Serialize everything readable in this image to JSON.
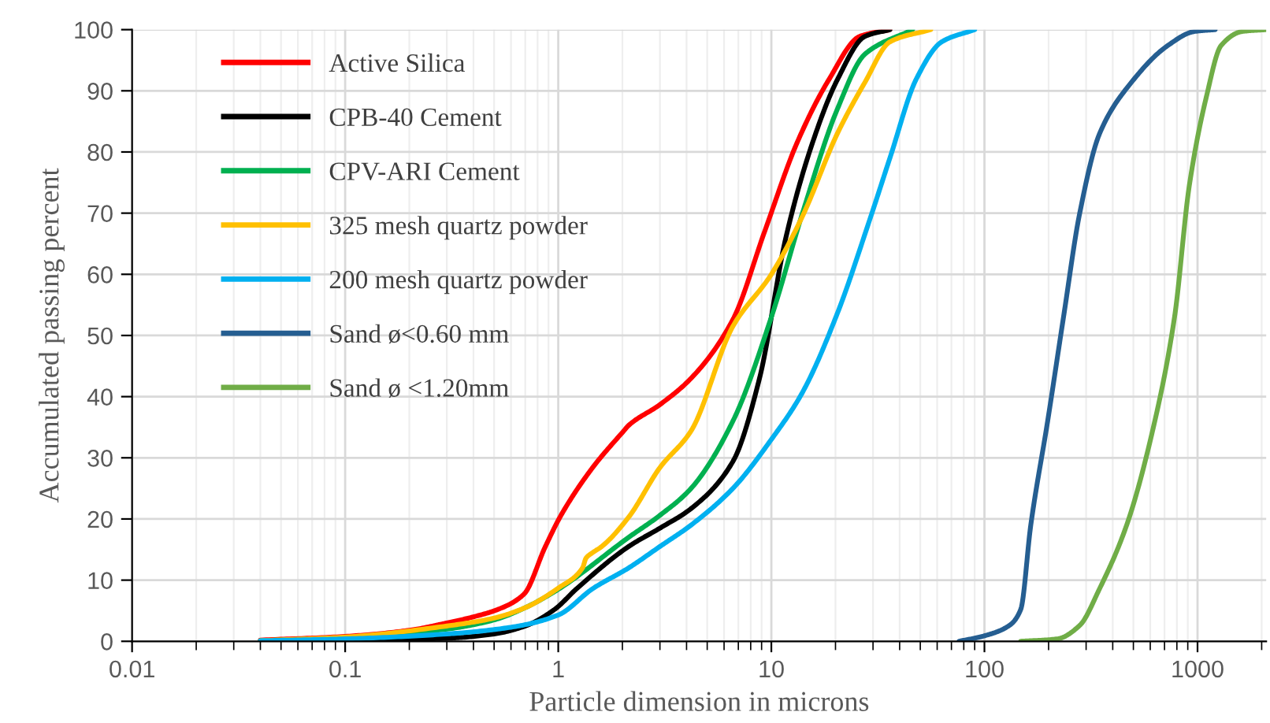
{
  "chart_data": {
    "type": "line",
    "xlabel": "Particle dimension in microns",
    "ylabel": "Accumulated passing percent",
    "log": "x",
    "xlim": [
      0.01,
      2100
    ],
    "xticks": [
      0.01,
      0.1,
      1,
      10,
      100,
      1000
    ],
    "ylim": [
      0,
      100
    ],
    "yticks": [
      0,
      10,
      20,
      30,
      40,
      50,
      60,
      70,
      80,
      90,
      100
    ],
    "grid": true,
    "legend": "top left",
    "marker": "none",
    "line_style": "solid",
    "series": [
      {
        "name": "Active Silica",
        "color": "#ff0000",
        "x": [
          0.04,
          0.1,
          0.2,
          0.3,
          0.4,
          0.52,
          0.69,
          0.87,
          1.03,
          1.45,
          2.03,
          2.14,
          3.0,
          4.2,
          6.6,
          9.3,
          13.2,
          18.6,
          26,
          36
        ],
        "values": [
          0.2,
          0.8,
          1.8,
          3,
          4,
          5.2,
          7.7,
          15.5,
          20.6,
          28.4,
          34.4,
          35.3,
          38.7,
          43,
          52.6,
          67,
          81.5,
          91.8,
          98.9,
          100
        ]
      },
      {
        "name": "CPB-40 Cement",
        "color": "#000000",
        "x": [
          0.04,
          0.1,
          0.3,
          0.5,
          0.7,
          0.96,
          1.22,
          2.14,
          3.0,
          4.2,
          6.6,
          8.8,
          11.7,
          15.6,
          20.4,
          27.5,
          36
        ],
        "values": [
          0,
          0.2,
          0.5,
          1.2,
          2.5,
          5.2,
          8.6,
          15.5,
          18.5,
          21.7,
          29.4,
          43,
          66,
          81.5,
          91.8,
          98.9,
          100
        ]
      },
      {
        "name": "CPV-ARI Cement",
        "color": "#00b050",
        "x": [
          0.04,
          0.1,
          0.3,
          0.5,
          0.7,
          1.0,
          2.14,
          3.0,
          4.2,
          6.6,
          10,
          14,
          20.4,
          27.5,
          46
        ],
        "values": [
          0.1,
          0.6,
          2,
          3.5,
          5.5,
          8.5,
          17,
          20.6,
          25,
          36,
          53,
          70,
          87,
          96,
          100
        ]
      },
      {
        "name": "325 mesh quartz powder",
        "color": "#ffc000",
        "x": [
          0.04,
          0.1,
          0.3,
          0.5,
          0.7,
          1.0,
          1.3,
          1.35,
          1.45,
          1.6,
          2.14,
          3.0,
          4.2,
          6.6,
          10,
          14,
          20.4,
          27.5,
          36,
          56
        ],
        "values": [
          0.1,
          0.7,
          2.5,
          3.8,
          5.5,
          8.7,
          12,
          13.6,
          14.5,
          15.5,
          20.3,
          28.4,
          34.4,
          51.5,
          60,
          69.5,
          83,
          91.4,
          98,
          100
        ]
      },
      {
        "name": "200 mesh quartz powder",
        "color": "#00b0f0",
        "x": [
          0.04,
          0.1,
          0.3,
          0.6,
          1.0,
          1.45,
          2.14,
          3.0,
          4.2,
          6.6,
          10,
          14,
          20.4,
          29,
          36,
          48,
          63,
          90
        ],
        "values": [
          0.1,
          0.4,
          1.2,
          2.3,
          4.3,
          8.6,
          12,
          15.5,
          19,
          25,
          33,
          40.7,
          53.6,
          69,
          79,
          92,
          98,
          100
        ]
      },
      {
        "name": "Sand ø<0.60 mm",
        "color": "#255e91",
        "x": [
          76,
          100,
          131,
          148,
          165,
          198,
          235,
          280,
          347,
          490,
          725,
          966,
          1210
        ],
        "values": [
          0,
          0.9,
          2.6,
          5.2,
          19,
          36,
          53,
          70,
          83,
          91.4,
          97.4,
          99.7,
          100
        ]
      },
      {
        "name": "Sand ø <1.20mm",
        "color": "#70ad47",
        "x": [
          148,
          220,
          280,
          347,
          465,
          615,
          780,
          915,
          1100,
          1290,
          1620,
          2100
        ],
        "values": [
          0,
          0.4,
          2.6,
          8.6,
          19,
          34.4,
          53,
          74.5,
          89,
          97.4,
          99.7,
          100
        ]
      }
    ]
  }
}
